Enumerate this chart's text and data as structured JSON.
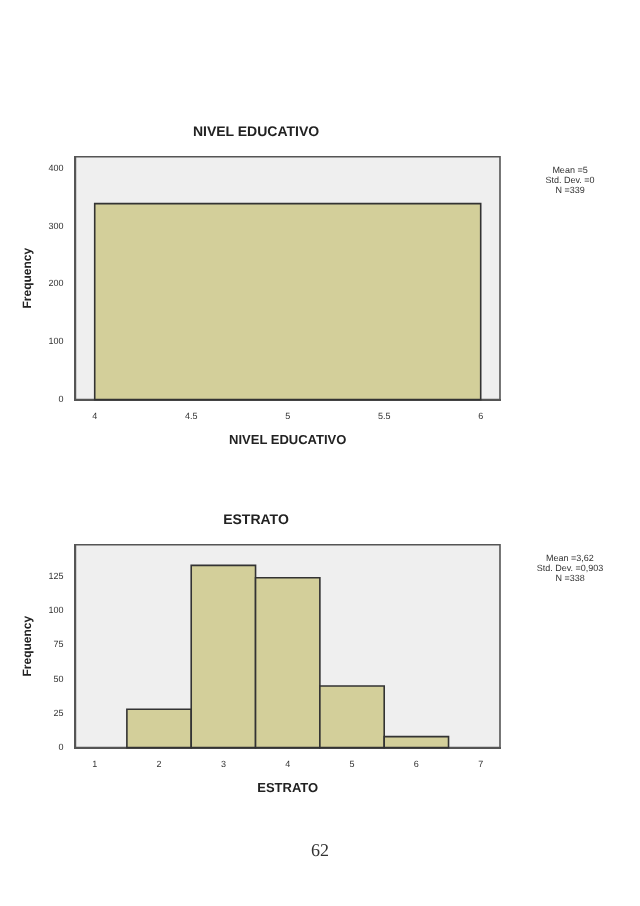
{
  "chart_data": [
    {
      "type": "histogram",
      "title": "NIVEL EDUCATIVO",
      "xlabel": "NIVEL EDUCATIVO",
      "ylabel": "Frequency",
      "bins": [
        4,
        6
      ],
      "values": [
        339
      ],
      "color": "#d3cf9a",
      "xlim": [
        3.9,
        6.1
      ],
      "xticks": [
        4,
        4.5,
        5,
        5.5,
        6
      ],
      "ylim": [
        0,
        420
      ],
      "yticks": [
        0,
        100,
        200,
        300,
        400
      ],
      "grid": false,
      "legend": false,
      "annotations": [
        "Mean =5",
        "Std. Dev. =0",
        "N =339"
      ]
    },
    {
      "type": "histogram",
      "title": "ESTRATO",
      "xlabel": "ESTRATO",
      "ylabel": "Frequency",
      "bins": [
        1.5,
        2.5,
        3.5,
        4.5,
        5.5,
        6.5
      ],
      "values": [
        28,
        133,
        124,
        45,
        8
      ],
      "color": "#d3cf9a",
      "xlim": [
        0.7,
        7.3
      ],
      "xticks": [
        1,
        2,
        3,
        4,
        5,
        6,
        7
      ],
      "ylim": [
        0,
        148
      ],
      "yticks": [
        0,
        25,
        50,
        75,
        100,
        125
      ],
      "grid": false,
      "legend": false,
      "annotations": [
        "Mean =3,62",
        "Std. Dev. =0,903",
        "N =338"
      ]
    },
    {
      "type": "other",
      "annotations": [
        "62"
      ]
    }
  ]
}
